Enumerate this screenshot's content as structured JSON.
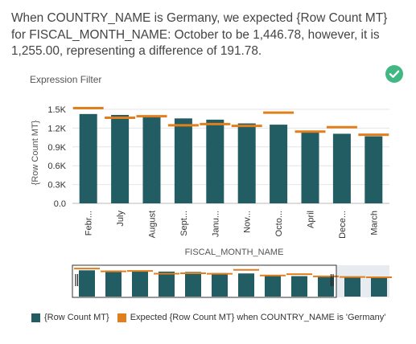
{
  "message": "When COUNTRY_NAME is Germany, we expected {Row Count MT} for FISCAL_MONTH_NAME: October to be 1,446.78, however, it is 1,255.00, representing a difference of 191.78.",
  "section_title": "Expression Filter",
  "status_icon": "check-circle-icon",
  "colors": {
    "bar": "#215d63",
    "expected": "#e07f1b",
    "check": "#41b883",
    "overview_bg": "#e8ebf0"
  },
  "chart_data": {
    "type": "bar",
    "title": "",
    "xlabel": "FISCAL_MONTH_NAME",
    "ylabel": "{Row Count MT}",
    "ylim": [
      0,
      1500
    ],
    "yticks": [
      0,
      300,
      600,
      900,
      1200,
      1500
    ],
    "ytick_labels": [
      "0.0",
      "0.3K",
      "0.6K",
      "0.9K",
      "1.2K",
      "1.5K"
    ],
    "categories": [
      "Febr...",
      "July",
      "August",
      "Sept...",
      "Janu...",
      "Nov...",
      "Octo...",
      "April",
      "Dece...",
      "March"
    ],
    "grid": true,
    "legend_position": "bottom",
    "series": [
      {
        "name": "{Row Count MT}",
        "kind": "bar",
        "values": [
          1425,
          1410,
          1375,
          1355,
          1335,
          1275,
          1255,
          1130,
          1110,
          1070
        ]
      },
      {
        "name": "Expected {Row Count MT} when COUNTRY_NAME is 'Germany'",
        "kind": "marker",
        "values": [
          1520,
          1365,
          1390,
          1245,
          1265,
          1235,
          1447,
          1145,
          1215,
          1095
        ]
      }
    ],
    "overview": {
      "categories_total": 12,
      "bar_values": [
        1425,
        1410,
        1375,
        1355,
        1335,
        1275,
        1255,
        1130,
        1110,
        1070,
        1040,
        1010
      ],
      "marker_values": [
        1520,
        1365,
        1390,
        1245,
        1265,
        1235,
        1447,
        1145,
        1215,
        1095,
        1060,
        1045
      ],
      "visible_count": 10
    }
  }
}
